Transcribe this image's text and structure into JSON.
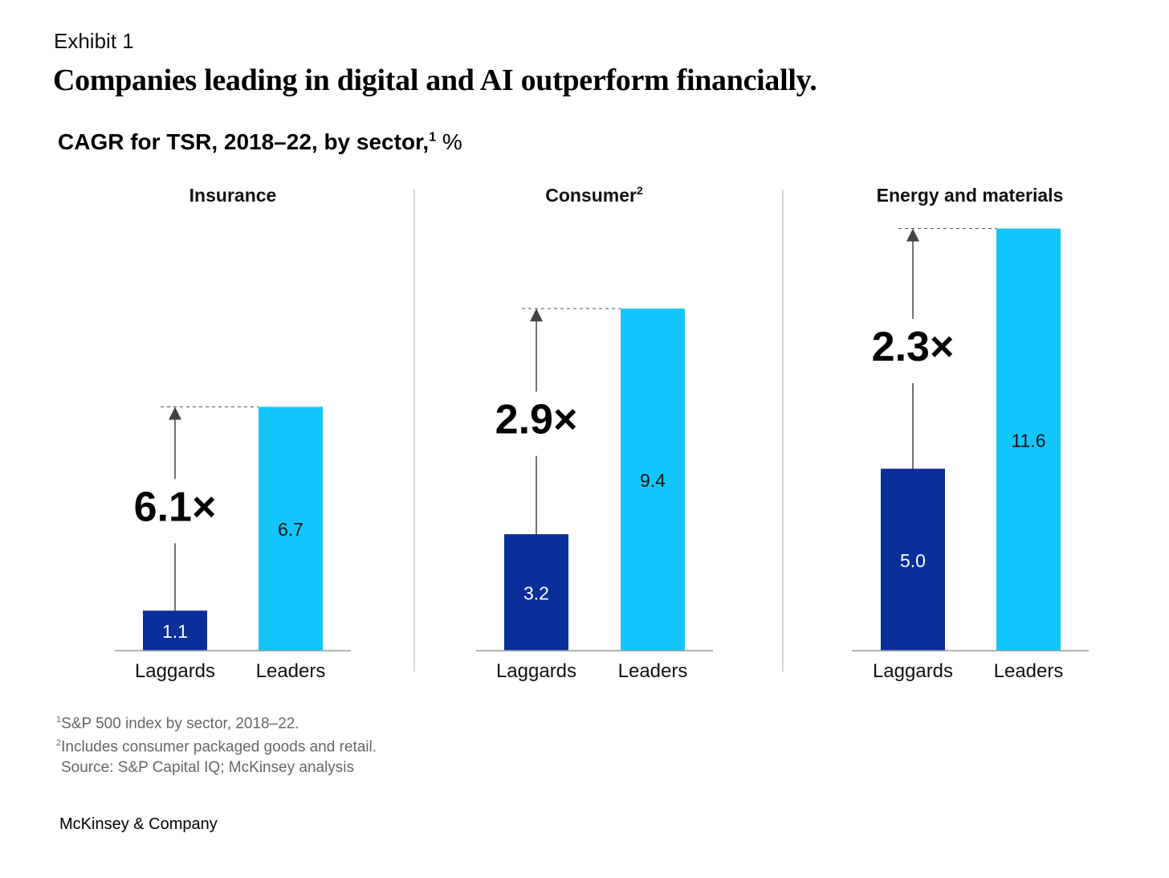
{
  "exhibit_label": "Exhibit 1",
  "title": "Companies leading in digital and AI outperform financially.",
  "subtitle": "CAGR for TSR, 2018–22, by sector,",
  "subtitle_sup": "1",
  "subtitle_unit": "%",
  "footnotes": {
    "note1_mark": "1",
    "note1": "S&P 500 index by sector, 2018–22.",
    "note2_mark": "2",
    "note2": "Includes consumer packaged goods and retail.",
    "source": "Source: S&P Capital IQ; McKinsey analysis"
  },
  "brand": "McKinsey & Company",
  "colors": {
    "laggards": "#0a2f99",
    "leaders": "#12c6fc",
    "axis": "#999999",
    "divider": "#bbbbbb",
    "arrow": "#444444"
  },
  "chart_data": [
    {
      "type": "bar",
      "title": "Insurance",
      "title_sup": "",
      "categories": [
        "Laggards",
        "Leaders"
      ],
      "values": [
        1.1,
        6.7
      ],
      "value_labels": [
        "1.1",
        "6.7"
      ],
      "multiplier": "6.1×"
    },
    {
      "type": "bar",
      "title": "Consumer",
      "title_sup": "2",
      "categories": [
        "Laggards",
        "Leaders"
      ],
      "values": [
        3.2,
        9.4
      ],
      "value_labels": [
        "3.2",
        "9.4"
      ],
      "multiplier": "2.9×"
    },
    {
      "type": "bar",
      "title": "Energy and materials",
      "title_sup": "",
      "categories": [
        "Laggards",
        "Leaders"
      ],
      "values": [
        5.0,
        11.6
      ],
      "value_labels": [
        "5.0",
        "11.6"
      ],
      "multiplier": "2.3×"
    }
  ]
}
